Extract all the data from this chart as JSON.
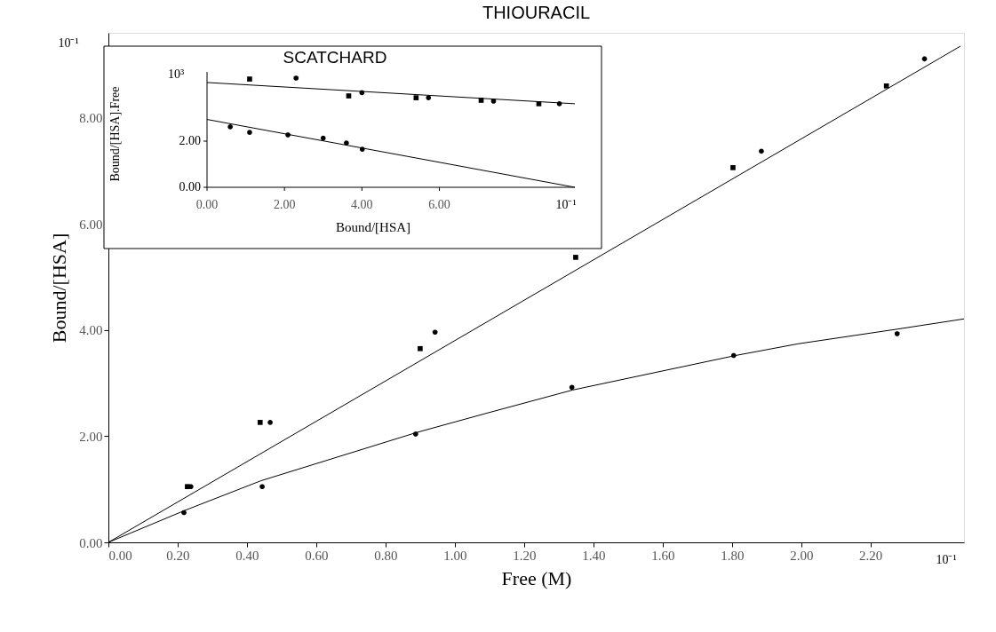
{
  "chart_data": [
    {
      "type": "scatter",
      "title": "THIOURACIL",
      "xlabel": "Free  (M)",
      "ylabel": "Bound/[HSA]",
      "xlim": [
        0,
        2.47
      ],
      "ylim": [
        0,
        9.6
      ],
      "xticks": [
        {
          "value": 0,
          "label": "0.00"
        },
        {
          "value": 0.2,
          "label": "0.20"
        },
        {
          "value": 0.4,
          "label": "0.40"
        },
        {
          "value": 0.6,
          "label": "0.60"
        },
        {
          "value": 0.8,
          "label": "0.80"
        },
        {
          "value": 1.0,
          "label": "1.00"
        },
        {
          "value": 1.2,
          "label": "1.20"
        },
        {
          "value": 1.4,
          "label": "1.40"
        },
        {
          "value": 1.6,
          "label": "1.60"
        },
        {
          "value": 1.8,
          "label": "1.80"
        },
        {
          "value": 2.0,
          "label": "2.00"
        },
        {
          "value": 2.2,
          "label": "2.20"
        }
      ],
      "yticks": [
        {
          "value": 0,
          "label": "0.00"
        },
        {
          "value": 2,
          "label": "2.00"
        },
        {
          "value": 4,
          "label": "4.00"
        },
        {
          "value": 6,
          "label": "6.00"
        },
        {
          "value": 8,
          "label": "8.00"
        }
      ],
      "annotations": [
        "10⁻¹",
        "10⁻¹"
      ],
      "grid": false,
      "series": [
        {
          "marker": "circle",
          "color": "#000000",
          "x": [
            0.218,
            0.444,
            0.887,
            1.338,
            1.805,
            2.277
          ],
          "values": [
            0.56,
            1.05,
            2.04,
            2.92,
            3.52,
            3.93
          ]
        },
        {
          "marker": "square",
          "color": "#000000",
          "x": [
            0.228,
            0.438,
            0.9,
            1.349,
            1.803,
            2.246
          ],
          "values": [
            1.05,
            2.26,
            3.65,
            5.37,
            7.06,
            8.6
          ]
        },
        {
          "marker": "circle",
          "color": "#000000",
          "x": [
            0.238,
            0.467,
            0.943,
            1.885,
            2.356
          ],
          "values": [
            1.05,
            2.26,
            3.96,
            7.37,
            9.11
          ]
        },
        {
          "type": "line",
          "line_style": "solid",
          "color": "#000000",
          "x": [
            0,
            0.22,
            0.44,
            0.89,
            1.09,
            1.34,
            1.81,
            1.99,
            2.28,
            2.47
          ],
          "values": [
            0,
            0.6,
            1.16,
            2.07,
            2.43,
            2.87,
            3.52,
            3.74,
            4.02,
            4.21
          ]
        },
        {
          "type": "line",
          "line_style": "solid",
          "color": "#000000",
          "x": [
            0,
            2.46
          ],
          "values": [
            0,
            9.35
          ]
        }
      ]
    },
    {
      "type": "scatter",
      "title": "SCATCHARD",
      "xlabel": "Bound/[HSA]",
      "ylabel": "Bound/[HSA].Free",
      "xlim": [
        0,
        9.5
      ],
      "ylim": [
        0,
        5.0
      ],
      "xticks": [
        {
          "value": 0,
          "label": "0.00"
        },
        {
          "value": 2,
          "label": "2.00"
        },
        {
          "value": 4,
          "label": "4.00"
        },
        {
          "value": 6,
          "label": "6.00"
        }
      ],
      "yticks": [
        {
          "value": 0,
          "label": "0.00"
        },
        {
          "value": 2,
          "label": "2.00"
        }
      ],
      "annotations": [
        "10³",
        "10⁻¹"
      ],
      "series": [
        {
          "marker": "circle",
          "color": "#000000",
          "x": [
            0.6,
            1.1,
            2.09,
            3.0,
            3.6,
            4.01
          ],
          "values": [
            2.62,
            2.38,
            2.27,
            2.13,
            1.92,
            1.65
          ]
        },
        {
          "marker": "square",
          "color": "#000000",
          "x": [
            1.1,
            3.66,
            5.4,
            7.08,
            8.57
          ],
          "values": [
            4.69,
            3.96,
            3.88,
            3.77,
            3.62
          ]
        },
        {
          "marker": "circle",
          "color": "#000000",
          "x": [
            2.3,
            4.0,
            5.72,
            7.4,
            9.1
          ],
          "values": [
            4.73,
            4.1,
            3.88,
            3.73,
            3.62
          ]
        },
        {
          "type": "line",
          "line_style": "solid",
          "color": "#000000",
          "x": [
            0,
            9.5
          ],
          "values": [
            2.94,
            0
          ]
        },
        {
          "type": "line",
          "line_style": "solid",
          "color": "#000000",
          "x": [
            0,
            9.5
          ],
          "values": [
            4.54,
            3.62
          ]
        }
      ]
    }
  ]
}
